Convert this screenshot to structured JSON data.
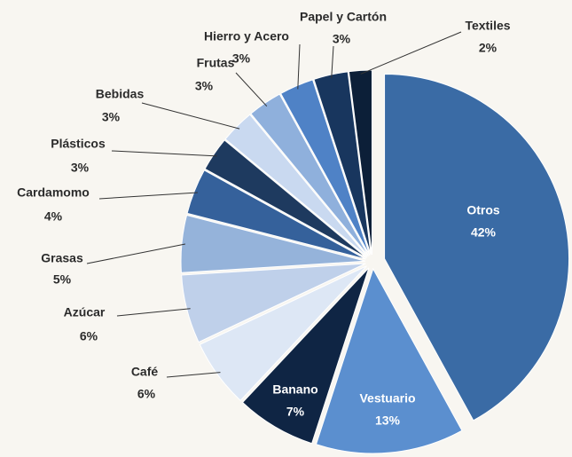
{
  "chart_data": {
    "type": "pie",
    "categories": [
      "Otros",
      "Vestuario",
      "Banano",
      "Café",
      "Azúcar",
      "Grasas",
      "Cardamomo",
      "Plásticos",
      "Bebidas",
      "Frutas",
      "Hierro y Acero",
      "Papel y Cartón",
      "Textiles"
    ],
    "values": [
      42,
      13,
      7,
      6,
      6,
      5,
      4,
      3,
      3,
      3,
      3,
      3,
      2
    ],
    "value_labels": [
      "42%",
      "13%",
      "7%",
      "6%",
      "6%",
      "5%",
      "4%",
      "3%",
      "3%",
      "3%",
      "3%",
      "3%",
      "2%"
    ],
    "colors": [
      "#3a6ba5",
      "#5b8fcf",
      "#0f2544",
      "#dde7f5",
      "#bfd0ea",
      "#95b3da",
      "#35619b",
      "#1e3a5f",
      "#c9d9f0",
      "#8fb0dc",
      "#4f82c6",
      "#18365e",
      "#0c1f38"
    ]
  }
}
